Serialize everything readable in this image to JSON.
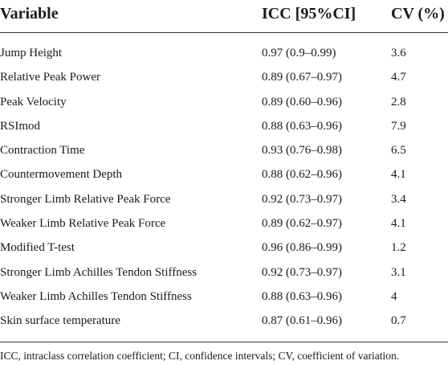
{
  "table": {
    "headers": [
      "Variable",
      "ICC [95%CI]",
      "CV (%)"
    ],
    "rows": [
      {
        "variable": "Jump Height",
        "icc": "0.97 (0.9–0.99)",
        "cv": "3.6"
      },
      {
        "variable": "Relative Peak Power",
        "icc": "0.89 (0.67–0.97)",
        "cv": "4.7"
      },
      {
        "variable": "Peak Velocity",
        "icc": "0.89 (0.60–0.96)",
        "cv": "2.8"
      },
      {
        "variable": "RSImod",
        "icc": "0.88 (0.63–0.96)",
        "cv": "7.9"
      },
      {
        "variable": "Contraction Time",
        "icc": "0.93 (0.76–0.98)",
        "cv": "6.5"
      },
      {
        "variable": "Countermovement Depth",
        "icc": "0.88 (0.62–0.96)",
        "cv": "4.1"
      },
      {
        "variable": "Stronger Limb Relative Peak Force",
        "icc": "0.92 (0.73–0.97)",
        "cv": "3.4"
      },
      {
        "variable": "Weaker Limb Relative Peak Force",
        "icc": "0.89 (0.62–0.97)",
        "cv": "4.1"
      },
      {
        "variable": "Modified T-test",
        "icc": "0.96 (0.86–0.99)",
        "cv": "1.2"
      },
      {
        "variable": "Stronger Limb Achilles Tendon Stiffness",
        "icc": "0.92 (0.73–0.97)",
        "cv": "3.1"
      },
      {
        "variable": "Weaker Limb Achilles Tendon Stiffness",
        "icc": "0.88 (0.63–0.96)",
        "cv": "4"
      },
      {
        "variable": "Skin surface temperature",
        "icc": "0.87 (0.61–0.96)",
        "cv": "0.7"
      }
    ]
  },
  "footnote": "ICC, intraclass correlation coefficient; CI, confidence intervals; CV, coefficient of variation."
}
